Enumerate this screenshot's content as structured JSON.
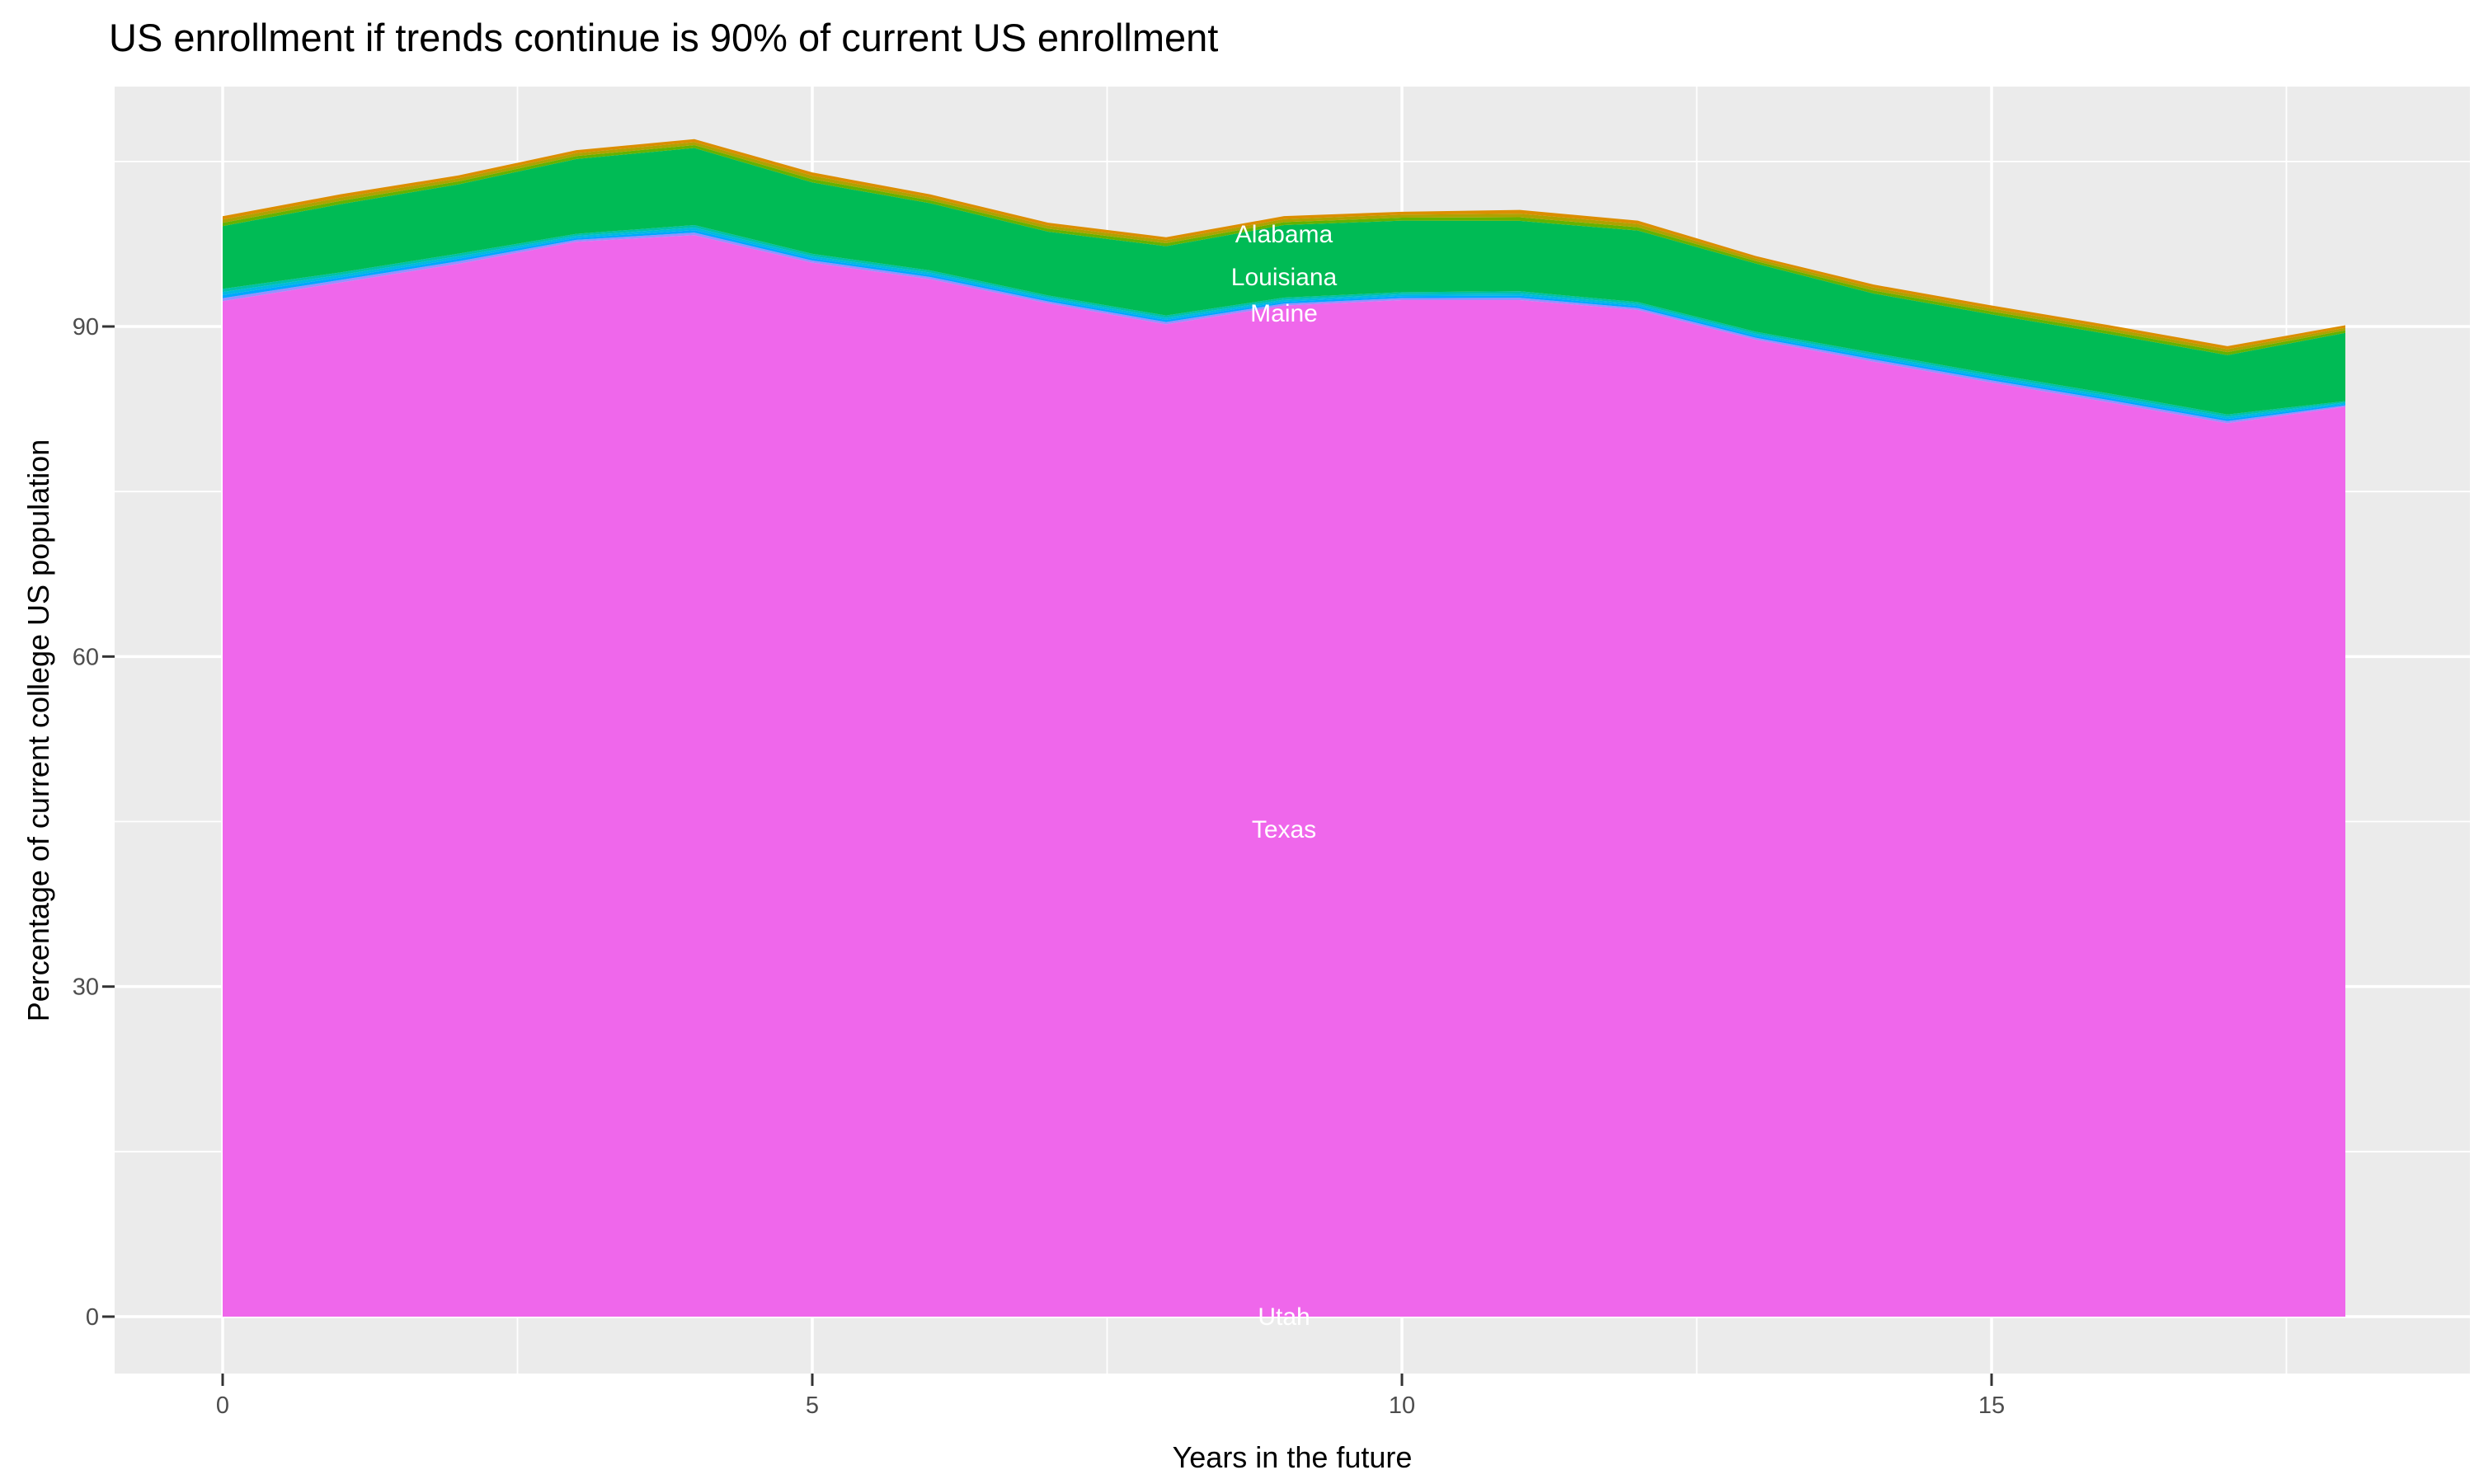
{
  "title": "US enrollment if trends continue is 90% of current US enrollment",
  "chart_data": {
    "type": "area",
    "stacked": true,
    "title": "US enrollment if trends continue is 90% of current US enrollment",
    "xlabel": "Years in the future",
    "ylabel": "Percentage of current college US population",
    "x": [
      0,
      1,
      2,
      3,
      4,
      5,
      6,
      7,
      8,
      9,
      10,
      11,
      12,
      13,
      14,
      15,
      16,
      17,
      18
    ],
    "x_ticks": [
      "0",
      "5",
      "10",
      "15"
    ],
    "x_tick_values": [
      0,
      5,
      10,
      15
    ],
    "x_minor_values": [
      2.5,
      7.5,
      12.5,
      17.5
    ],
    "y_ticks": [
      "0",
      "30",
      "60",
      "90"
    ],
    "y_tick_values": [
      0,
      30,
      60,
      90
    ],
    "y_minor_values": [
      15,
      45,
      75,
      105
    ],
    "xlim": [
      0,
      18
    ],
    "ylim": [
      -5.2,
      111.8
    ],
    "grid": "on",
    "legend": "none",
    "panel_background": "#EBEBEB",
    "gridline_color": "#FFFFFF",
    "tick_color": "#333333",
    "tick_label_color": "#4D4D4D",
    "series": [
      {
        "id": "utah",
        "label": "Utah",
        "color": "#FF63B6",
        "values": [
          0,
          0,
          0,
          0,
          0,
          0,
          0,
          0,
          0,
          0,
          0,
          0,
          0,
          0,
          0,
          0,
          0,
          0,
          0
        ]
      },
      {
        "id": "texas",
        "label": "Texas",
        "color": "#EF67EB",
        "values": [
          92.3,
          94.0,
          95.7,
          97.7,
          98.3,
          95.8,
          94.3,
          92.1,
          90.2,
          91.9,
          92.4,
          92.4,
          91.5,
          88.8,
          86.8,
          84.9,
          83.1,
          81.2,
          82.7
        ]
      },
      {
        "id": "strip-periwinkle",
        "label": null,
        "color": "#9590FF",
        "values": [
          0.28,
          0.23,
          0.23,
          0.18,
          0.23,
          0.2,
          0.2,
          0.18,
          0.2,
          0.18,
          0.18,
          0.2,
          0.18,
          0.18,
          0.2,
          0.2,
          0.2,
          0.2,
          0.13
        ]
      },
      {
        "id": "strip-azure",
        "label": null,
        "color": "#00A6FF",
        "values": [
          0.28,
          0.23,
          0.23,
          0.18,
          0.23,
          0.2,
          0.2,
          0.18,
          0.2,
          0.18,
          0.18,
          0.2,
          0.18,
          0.18,
          0.2,
          0.2,
          0.2,
          0.2,
          0.13
        ]
      },
      {
        "id": "strip-sky",
        "label": null,
        "color": "#00BADE",
        "values": [
          0.28,
          0.23,
          0.23,
          0.18,
          0.23,
          0.2,
          0.2,
          0.18,
          0.2,
          0.18,
          0.18,
          0.2,
          0.18,
          0.18,
          0.2,
          0.2,
          0.2,
          0.2,
          0.13
        ]
      },
      {
        "id": "strip-teal",
        "label": "Maine",
        "color": "#00C1A7",
        "values": [
          0.28,
          0.23,
          0.23,
          0.18,
          0.23,
          0.2,
          0.2,
          0.18,
          0.2,
          0.18,
          0.18,
          0.2,
          0.18,
          0.18,
          0.2,
          0.2,
          0.2,
          0.2,
          0.13
        ]
      },
      {
        "id": "louisiana",
        "label": "Louisiana",
        "color": "#00BB55",
        "values": [
          5.7,
          6.2,
          6.3,
          6.8,
          7.0,
          6.5,
          6.1,
          5.8,
          6.3,
          6.6,
          6.5,
          6.4,
          6.5,
          6.2,
          5.4,
          5.4,
          5.4,
          5.4,
          6.2
        ]
      },
      {
        "id": "strip-yellowgreen",
        "label": null,
        "color": "#64B200",
        "values": [
          0.3,
          0.3,
          0.27,
          0.27,
          0.27,
          0.3,
          0.27,
          0.27,
          0.27,
          0.27,
          0.27,
          0.33,
          0.3,
          0.23,
          0.27,
          0.27,
          0.27,
          0.27,
          0.23
        ]
      },
      {
        "id": "strip-olive",
        "label": "Alabama",
        "color": "#AEA200",
        "values": [
          0.3,
          0.3,
          0.27,
          0.27,
          0.27,
          0.3,
          0.27,
          0.27,
          0.27,
          0.27,
          0.27,
          0.33,
          0.3,
          0.23,
          0.27,
          0.27,
          0.27,
          0.27,
          0.23
        ]
      },
      {
        "id": "strip-orange",
        "label": null,
        "color": "#DB8E00",
        "values": [
          0.3,
          0.3,
          0.27,
          0.27,
          0.27,
          0.3,
          0.27,
          0.27,
          0.27,
          0.27,
          0.27,
          0.33,
          0.3,
          0.23,
          0.27,
          0.27,
          0.27,
          0.27,
          0.23
        ]
      }
    ],
    "annotations": [
      {
        "text": "Alabama",
        "x": 9.0,
        "y": 98.4,
        "color": "#FFFFFF"
      },
      {
        "text": "Louisiana",
        "x": 9.0,
        "y": 94.5,
        "color": "#FFFFFF"
      },
      {
        "text": "Maine",
        "x": 9.0,
        "y": 91.2,
        "color": "#FFFFFF"
      },
      {
        "text": "Texas",
        "x": 9.0,
        "y": 44.3,
        "color": "#FFFFFF"
      },
      {
        "text": "Utah",
        "x": 9.0,
        "y": 0.0,
        "color": "#FFFFFF"
      }
    ]
  }
}
